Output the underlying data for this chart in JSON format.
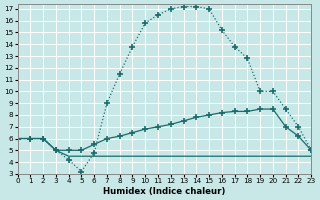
{
  "xlabel": "Humidex (Indice chaleur)",
  "background_color": "#c8e8e8",
  "grid_color": "#ffffff",
  "line_color": "#1a6b6b",
  "xlim": [
    0,
    23
  ],
  "ylim": [
    3,
    17.4
  ],
  "xticks": [
    0,
    1,
    2,
    3,
    4,
    5,
    6,
    7,
    8,
    9,
    10,
    11,
    12,
    13,
    14,
    15,
    16,
    17,
    18,
    19,
    20,
    21,
    22,
    23
  ],
  "yticks": [
    3,
    4,
    5,
    6,
    7,
    8,
    9,
    10,
    11,
    12,
    13,
    14,
    15,
    16,
    17
  ],
  "curve_big_x": [
    0,
    1,
    2,
    3,
    4,
    5,
    6,
    7,
    8,
    9,
    10,
    11,
    12,
    13,
    14,
    15,
    16,
    17,
    18,
    19,
    20,
    21,
    22,
    23
  ],
  "curve_big_y": [
    6,
    6,
    6,
    5,
    4.2,
    3.2,
    4.8,
    9.0,
    11.5,
    13.8,
    15.8,
    16.5,
    17.0,
    17.2,
    17.2,
    17.0,
    15.2,
    13.8,
    12.8,
    10.0,
    10.0,
    8.5,
    7.0,
    5.0
  ],
  "curve_mid_x": [
    0,
    1,
    2,
    3,
    4,
    5,
    6,
    7,
    8,
    9,
    10,
    11,
    12,
    13,
    14,
    15,
    16,
    17,
    18,
    19,
    20,
    21,
    22,
    23
  ],
  "curve_mid_y": [
    6,
    6,
    6,
    5,
    5,
    5,
    5.5,
    6.0,
    6.2,
    6.5,
    6.8,
    7.0,
    7.2,
    7.5,
    7.8,
    8.0,
    8.2,
    8.3,
    8.3,
    8.5,
    8.5,
    7.0,
    6.2,
    5.0
  ],
  "curve_flat_x": [
    0,
    1,
    2,
    3,
    4,
    5,
    6,
    7,
    8,
    9,
    10,
    11,
    12,
    13,
    14,
    15,
    16,
    17,
    18,
    19,
    20,
    21,
    22,
    23
  ],
  "curve_flat_y": [
    6,
    6,
    6,
    5,
    4.5,
    4.5,
    4.5,
    4.5,
    4.5,
    4.5,
    4.5,
    4.5,
    4.5,
    4.5,
    4.5,
    4.5,
    4.5,
    4.5,
    4.5,
    4.5,
    4.5,
    4.5,
    4.5,
    4.5
  ]
}
